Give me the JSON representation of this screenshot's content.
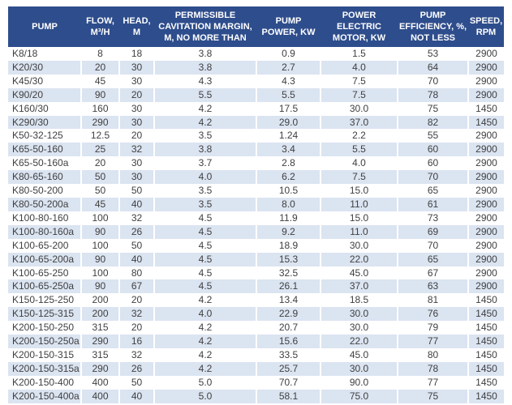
{
  "colors": {
    "header_bg": "#2e4d8c",
    "header_text": "#ffffff",
    "stripe": "#dbe4f1",
    "body_text": "#3f3f3f"
  },
  "chart_data": {
    "type": "table",
    "title": "Pump specifications table",
    "columns": [
      "PUMP",
      "FLOW,\nM³/H",
      "HEAD,\nM",
      "PERMISSIBLE\nCAVITATION MARGIN,\nM, NO MORE THAN",
      "PUMP\nPOWER, KW",
      "POWER\nELECTRIC\nMOTOR, KW",
      "PUMP\nEFFICIENCY, %,\nNOT LESS",
      "SPEED,\nRPM"
    ],
    "rows": [
      [
        "K8/18",
        "8",
        "18",
        "3.8",
        "0.9",
        "1.5",
        "53",
        "2900"
      ],
      [
        "K20/30",
        "20",
        "30",
        "3.8",
        "2.7",
        "4.0",
        "64",
        "2900"
      ],
      [
        "K45/30",
        "45",
        "30",
        "4.3",
        "4.3",
        "7.5",
        "70",
        "2900"
      ],
      [
        "K90/20",
        "90",
        "20",
        "5.5",
        "5.5",
        "7.5",
        "78",
        "2900"
      ],
      [
        "K160/30",
        "160",
        "30",
        "4.2",
        "17.5",
        "30.0",
        "75",
        "1450"
      ],
      [
        "K290/30",
        "290",
        "30",
        "4.2",
        "29.0",
        "37.0",
        "82",
        "1450"
      ],
      [
        "K50-32-125",
        "12.5",
        "20",
        "3.5",
        "1.24",
        "2.2",
        "55",
        "2900"
      ],
      [
        "K65-50-160",
        "25",
        "32",
        "3.8",
        "3.4",
        "5.5",
        "60",
        "2900"
      ],
      [
        "K65-50-160a",
        "20",
        "30",
        "3.7",
        "2.8",
        "4.0",
        "60",
        "2900"
      ],
      [
        "K80-65-160",
        "50",
        "30",
        "4.0",
        "6.2",
        "7.5",
        "70",
        "2900"
      ],
      [
        "K80-50-200",
        "50",
        "50",
        "3.5",
        "10.5",
        "15.0",
        "65",
        "2900"
      ],
      [
        "K80-50-200a",
        "45",
        "40",
        "3.5",
        "8.0",
        "11.0",
        "61",
        "2900"
      ],
      [
        "K100-80-160",
        "100",
        "32",
        "4.5",
        "11.9",
        "15.0",
        "73",
        "2900"
      ],
      [
        "K100-80-160a",
        "90",
        "26",
        "4.5",
        "9.2",
        "11.0",
        "69",
        "2900"
      ],
      [
        "K100-65-200",
        "100",
        "50",
        "4.5",
        "18.9",
        "30.0",
        "70",
        "2900"
      ],
      [
        "K100-65-200a",
        "90",
        "40",
        "4.5",
        "15.3",
        "22.0",
        "65",
        "2900"
      ],
      [
        "K100-65-250",
        "100",
        "80",
        "4.5",
        "32.5",
        "45.0",
        "67",
        "2900"
      ],
      [
        "K100-65-250a",
        "90",
        "67",
        "4.5",
        "26.1",
        "37.0",
        "63",
        "2900"
      ],
      [
        "K150-125-250",
        "200",
        "20",
        "4.2",
        "13.4",
        "18.5",
        "81",
        "1450"
      ],
      [
        "K150-125-315",
        "200",
        "32",
        "4.0",
        "22.9",
        "30.0",
        "76",
        "1450"
      ],
      [
        "K200-150-250",
        "315",
        "20",
        "4.2",
        "20.7",
        "30.0",
        "79",
        "1450"
      ],
      [
        "K200-150-250a",
        "290",
        "16",
        "4.2",
        "15.6",
        "22.0",
        "77",
        "1450"
      ],
      [
        "K200-150-315",
        "315",
        "32",
        "4.2",
        "33.5",
        "45.0",
        "80",
        "1450"
      ],
      [
        "K200-150-315a",
        "290",
        "26",
        "4.2",
        "25.7",
        "30.0",
        "78",
        "1450"
      ],
      [
        "K200-150-400",
        "400",
        "50",
        "5.0",
        "70.7",
        "90.0",
        "77",
        "1450"
      ],
      [
        "K200-150-400a",
        "400",
        "40",
        "5.0",
        "58.1",
        "75.0",
        "75",
        "1450"
      ]
    ],
    "layout": {
      "striped_rows": "even rows light blue, odd rows white",
      "header_lines": 3,
      "first_column_align": "left",
      "value_align": "center"
    }
  }
}
